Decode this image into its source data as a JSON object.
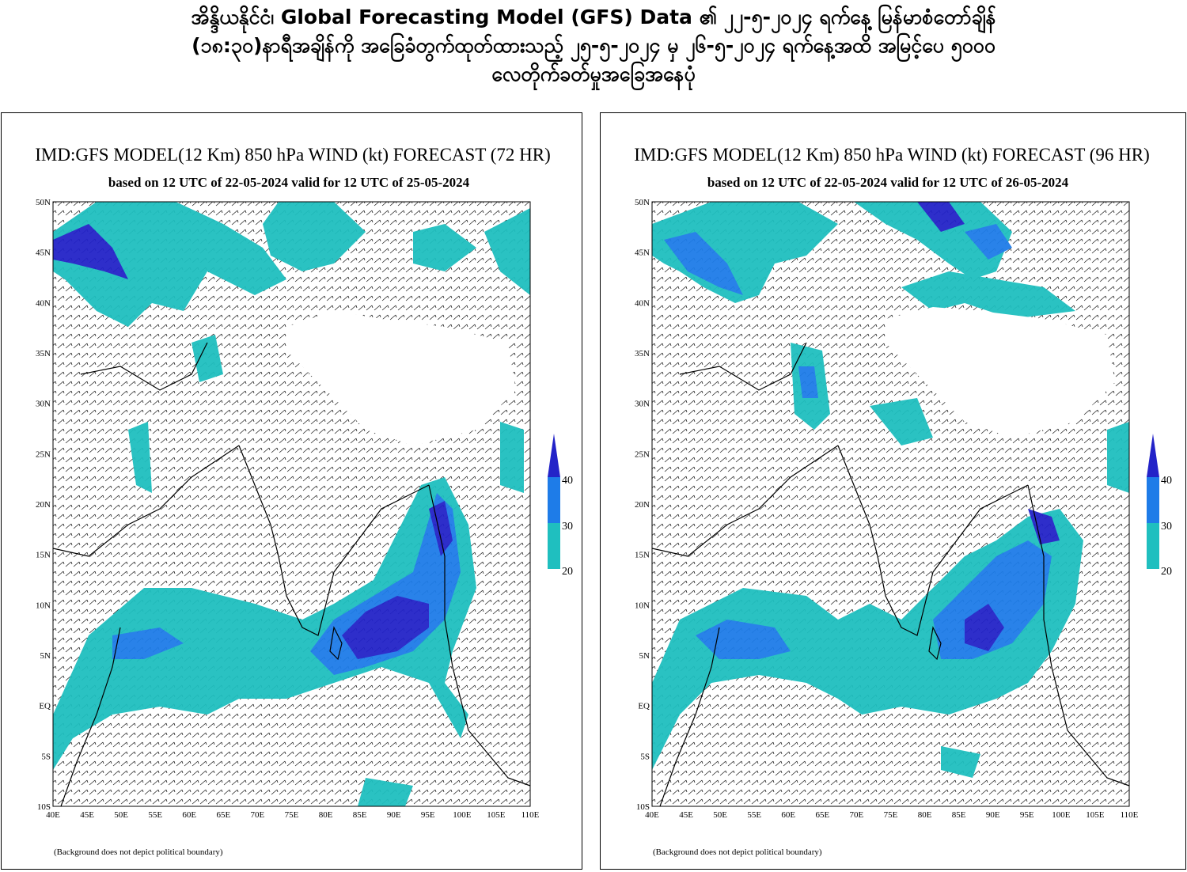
{
  "page_title_lines": [
    "အိန္ဒိယနိုင်ငံ၊ Global Forecasting Model (GFS) Data ၏ ၂၂-၅-၂၀၂၄ ရက်နေ့ မြန်မာစံတော်ချိန်",
    "(၁၈:၃၀)နာရီအချိန်ကို အခြေခံတွက်ထုတ်ထားသည့် ၂၅-၅-၂၀၂၄ မှ ၂၆-၅-၂၀၂၄ ရက်နေ့အထိ အမြင့်ပေ ၅၀၀၀",
    "လေတိုက်ခတ်မှုအခြေအနေပုံ"
  ],
  "x_ticks": [
    "40E",
    "45E",
    "50E",
    "55E",
    "60E",
    "65E",
    "70E",
    "75E",
    "80E",
    "85E",
    "90E",
    "95E",
    "100E",
    "105E",
    "110E"
  ],
  "y_ticks": [
    "50N",
    "45N",
    "40N",
    "35N",
    "30N",
    "25N",
    "20N",
    "15N",
    "10N",
    "5N",
    "EQ",
    "5S",
    "10S"
  ],
  "colorbar": {
    "labels": [
      "20",
      "30",
      "40"
    ],
    "colors": [
      "#1fbfbf",
      "#1e7ce8",
      "#2323c8"
    ]
  },
  "panels": [
    {
      "title": "IMD:GFS MODEL(12 Km) 850 hPa WIND (kt) FORECAST (72 HR)",
      "subtitle": "based on 12 UTC of 22-05-2024 valid for 12 UTC of 25-05-2024",
      "note": "(Background does not depict political boundary)"
    },
    {
      "title": "IMD:GFS MODEL(12 Km) 850 hPa WIND (kt) FORECAST (96 HR)",
      "subtitle": "based on 12 UTC of 22-05-2024 valid for 12 UTC of 26-05-2024",
      "note": "(Background does not depict political boundary)"
    }
  ]
}
